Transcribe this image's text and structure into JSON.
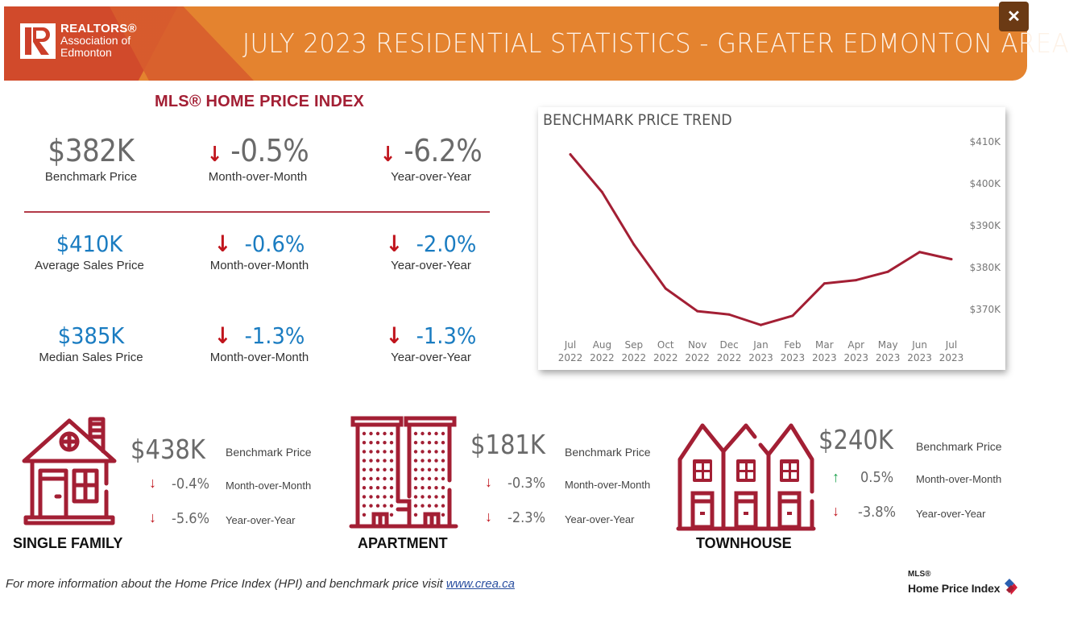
{
  "header": {
    "org_line1": "REALTORS®",
    "org_line2": "Association of",
    "org_line3": "Edmonton",
    "title": "JULY 2023 RESIDENTIAL STATISTICS - GREATER EDMONTON AREA",
    "close_label": "✕"
  },
  "hpi": {
    "title": "MLS® HOME PRICE INDEX",
    "benchmark": {
      "value": "$382K",
      "label": "Benchmark Price"
    },
    "benchmark_mom": {
      "value": "-0.5%",
      "label": "Month-over-Month",
      "direction": "down"
    },
    "benchmark_yoy": {
      "value": "-6.2%",
      "label": "Year-over-Year",
      "direction": "down"
    },
    "average": {
      "value": "$410K",
      "label": "Average Sales Price"
    },
    "average_mom": {
      "value": "-0.6%",
      "label": "Month-over-Month",
      "direction": "down"
    },
    "average_yoy": {
      "value": "-2.0%",
      "label": "Year-over-Year",
      "direction": "down"
    },
    "median": {
      "value": "$385K",
      "label": "Median Sales Price"
    },
    "median_mom": {
      "value": "-1.3%",
      "label": "Month-over-Month",
      "direction": "down"
    },
    "median_yoy": {
      "value": "-1.3%",
      "label": "Year-over-Year",
      "direction": "down"
    }
  },
  "arrows": {
    "down": "↓",
    "up": "↑"
  },
  "chart_data": {
    "type": "line",
    "title": "BENCHMARK PRICE TREND",
    "categories": [
      [
        "Jul",
        "2022"
      ],
      [
        "Aug",
        "2022"
      ],
      [
        "Sep",
        "2022"
      ],
      [
        "Oct",
        "2022"
      ],
      [
        "Nov",
        "2022"
      ],
      [
        "Dec",
        "2022"
      ],
      [
        "Jan",
        "2023"
      ],
      [
        "Feb",
        "2023"
      ],
      [
        "Mar",
        "2023"
      ],
      [
        "Apr",
        "2023"
      ],
      [
        "May",
        "2023"
      ],
      [
        "Jun",
        "2023"
      ],
      [
        "Jul",
        "2023"
      ]
    ],
    "series": [
      {
        "name": "Benchmark Price ($K)",
        "color": "#a31f34",
        "values": [
          407,
          398,
          385.5,
          375,
          369.6,
          368.8,
          366.3,
          368.5,
          376.2,
          377,
          379,
          383.7,
          382
        ]
      }
    ],
    "yticks": [
      370,
      380,
      390,
      400,
      410
    ],
    "ytick_labels": [
      "$370K",
      "$380K",
      "$390K",
      "$400K",
      "$410K"
    ],
    "ylim": [
      363,
      412
    ],
    "xlabel": "",
    "ylabel": "",
    "grid": false,
    "y_axis_position": "right"
  },
  "property_types": [
    {
      "name": "SINGLE FAMILY",
      "benchmark": "$438K",
      "benchmark_label": "Benchmark Price",
      "mom": "-0.4%",
      "mom_label": "Month-over-Month",
      "mom_dir": "down",
      "yoy": "-5.6%",
      "yoy_label": "Year-over-Year",
      "yoy_dir": "down"
    },
    {
      "name": "APARTMENT",
      "benchmark": "$181K",
      "benchmark_label": "Benchmark Price",
      "mom": "-0.3%",
      "mom_label": "Month-over-Month",
      "mom_dir": "down",
      "yoy": "-2.3%",
      "yoy_label": "Year-over-Year",
      "yoy_dir": "down"
    },
    {
      "name": "TOWNHOUSE",
      "benchmark": "$240K",
      "benchmark_label": "Benchmark Price",
      "mom": "0.5%",
      "mom_label": "Month-over-Month",
      "mom_dir": "up",
      "yoy": "-3.8%",
      "yoy_label": "Year-over-Year",
      "yoy_dir": "down"
    }
  ],
  "footer": {
    "text": "For more information about the Home Price Index (HPI) and benchmark price visit ",
    "link": "www.crea.ca",
    "logo_line1": "MLS®",
    "logo_line2": "Home Price Index"
  },
  "colors": {
    "brand_red": "#a31f34",
    "header_orange": "#e4832f",
    "blue": "#1a7cc1",
    "down": "#c0141c",
    "up": "#1aa14b"
  }
}
